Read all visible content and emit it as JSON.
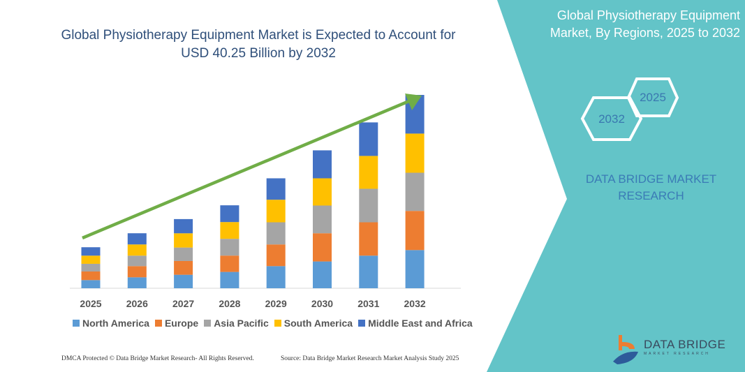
{
  "title": "Global Physiotherapy Equipment Market is Expected to Account for USD 40.25 Billion by 2032",
  "side_panel": {
    "title": "Global Physiotherapy Equipment Market, By Regions, 2025 to 2032",
    "hex_start": "2025",
    "hex_end": "2032",
    "brand_line1": "DATA BRIDGE MARKET",
    "brand_line2": "RESEARCH",
    "logo_text": "DATA BRIDGE",
    "logo_sub": "MARKET RESEARCH",
    "color": "#63c4c8"
  },
  "footer": {
    "left": "DMCA Protected © Data Bridge Market Research- All Rights Reserved.",
    "right": "Source: Data Bridge Market Research Market Analysis Study 2025"
  },
  "chart_data": {
    "type": "bar",
    "stacked": true,
    "title": "Global Physiotherapy Equipment Market is Expected to Account for USD 40.25 Billion by 2032",
    "categories": [
      "2025",
      "2026",
      "2027",
      "2028",
      "2029",
      "2030",
      "2031",
      "2032"
    ],
    "series": [
      {
        "name": "North America",
        "color": "#5b9bd5",
        "values": [
          1.7,
          2.28,
          2.81,
          3.4,
          4.61,
          5.58,
          6.79,
          7.95
        ]
      },
      {
        "name": "Europe",
        "color": "#ed7d31",
        "values": [
          1.79,
          2.33,
          2.86,
          3.4,
          4.51,
          5.87,
          6.94,
          8.15
        ]
      },
      {
        "name": "Asia Pacific",
        "color": "#a5a5a5",
        "values": [
          1.6,
          2.18,
          2.81,
          3.49,
          4.61,
          5.77,
          6.98,
          7.95
        ]
      },
      {
        "name": "South America",
        "color": "#ffc000",
        "values": [
          1.7,
          2.33,
          2.96,
          3.49,
          4.7,
          5.67,
          6.84,
          8.15
        ]
      },
      {
        "name": "Middle East and Africa",
        "color": "#4472c4",
        "values": [
          1.75,
          2.33,
          2.96,
          3.49,
          4.46,
          5.82,
          6.98,
          8.05
        ]
      }
    ],
    "ylim": [
      0,
      40.25
    ],
    "y_axis_shown": false,
    "grid": false,
    "legend": "bottom",
    "trend_arrow_color": "#70ad47"
  }
}
